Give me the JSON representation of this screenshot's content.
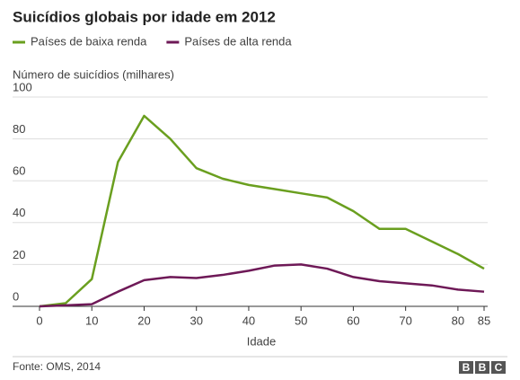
{
  "chart_data": {
    "type": "line",
    "title": "Suicídios globais por idade em 2012",
    "y_label": "Número de suicídios (milhares)",
    "x_label": "Idade",
    "x": [
      0,
      5,
      10,
      15,
      20,
      25,
      30,
      35,
      40,
      45,
      50,
      55,
      60,
      65,
      70,
      75,
      80,
      85
    ],
    "series": [
      {
        "name": "Países de baixa renda",
        "color": "#6a9f1f",
        "values": [
          0,
          1.5,
          13,
          69,
          91,
          80,
          66,
          61,
          58,
          56,
          54,
          52,
          45.5,
          37,
          37,
          31,
          25,
          18
        ]
      },
      {
        "name": "Países de alta renda",
        "color": "#6e1957",
        "values": [
          0,
          0.5,
          1,
          7,
          12.5,
          14,
          13.5,
          15,
          17,
          19.5,
          20,
          18,
          14,
          12,
          11,
          10,
          8,
          7
        ]
      }
    ],
    "xlim": [
      0,
      85
    ],
    "xticks": [
      0,
      10,
      20,
      30,
      40,
      50,
      60,
      70,
      80,
      85
    ],
    "ylim": [
      0,
      100
    ],
    "yticks": [
      0,
      20,
      40,
      60,
      80,
      100
    ],
    "grid": true,
    "source": "Fonte: OMS, 2014",
    "logo_letters": [
      "B",
      "B",
      "C"
    ]
  }
}
